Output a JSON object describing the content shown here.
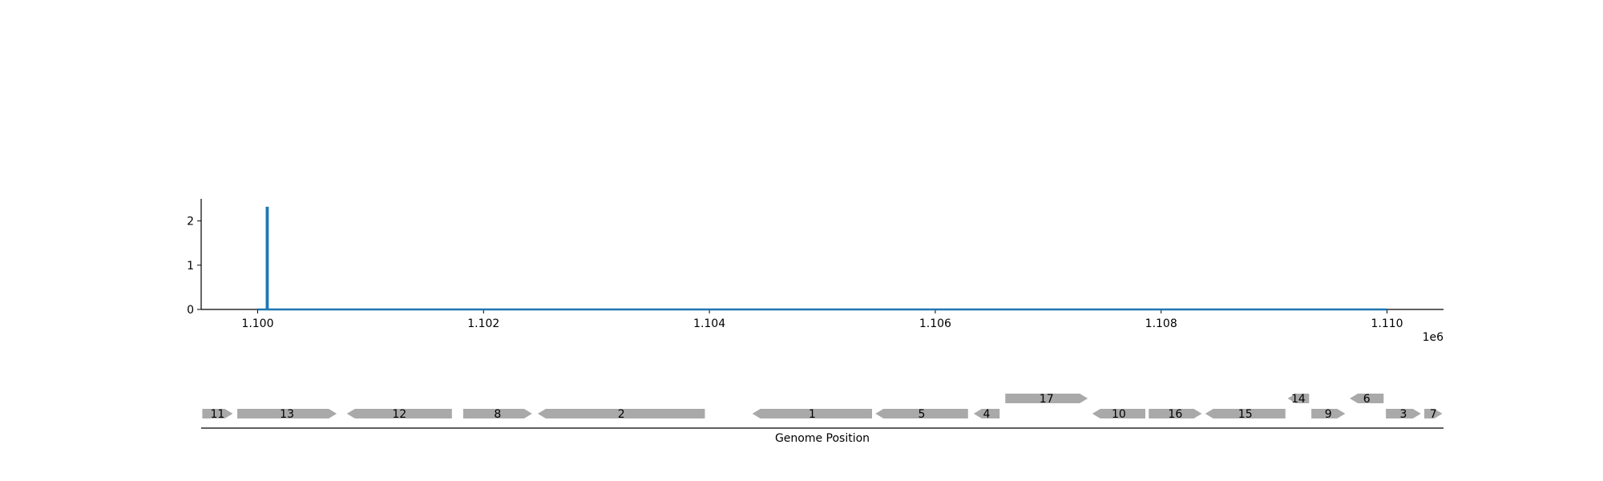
{
  "chart_data": {
    "type": "line",
    "title": "",
    "xlabel": "Genome Position",
    "ylabel": "",
    "x_multiplier_label": "1e6",
    "xlim": [
      1099500,
      1110500
    ],
    "ylim": [
      0,
      2.5
    ],
    "x_ticks": [
      1100000,
      1102000,
      1104000,
      1106000,
      1108000,
      1110000
    ],
    "x_tick_labels": [
      "1.100",
      "1.102",
      "1.104",
      "1.106",
      "1.108",
      "1.110"
    ],
    "y_ticks": [
      0,
      1,
      2
    ],
    "y_tick_labels": [
      "0",
      "1",
      "2"
    ],
    "line_color": "#1f77b4",
    "gene_color": "#a9a9a9",
    "series": [
      {
        "points": [
          [
            1100000,
            0
          ],
          [
            1100080,
            0
          ],
          [
            1100080,
            2.3
          ],
          [
            1100090,
            2.3
          ],
          [
            1100090,
            0
          ],
          [
            1110000,
            0
          ]
        ]
      }
    ],
    "genes": [
      {
        "label": "11",
        "start": 1099510,
        "end": 1099780,
        "strand": "+",
        "row": 0
      },
      {
        "label": "13",
        "start": 1099820,
        "end": 1100700,
        "strand": "+",
        "row": 0
      },
      {
        "label": "12",
        "start": 1100790,
        "end": 1101720,
        "strand": "-",
        "row": 0
      },
      {
        "label": "8",
        "start": 1101820,
        "end": 1102430,
        "strand": "+",
        "row": 0
      },
      {
        "label": "2",
        "start": 1102480,
        "end": 1103960,
        "strand": "-",
        "row": 0
      },
      {
        "label": "1",
        "start": 1104380,
        "end": 1105440,
        "strand": "-",
        "row": 0
      },
      {
        "label": "5",
        "start": 1105470,
        "end": 1106290,
        "strand": "-",
        "row": 0
      },
      {
        "label": "4",
        "start": 1106340,
        "end": 1106570,
        "strand": "-",
        "row": 0
      },
      {
        "label": "17",
        "start": 1106620,
        "end": 1107350,
        "strand": "+",
        "row": 1
      },
      {
        "label": "10",
        "start": 1107390,
        "end": 1107860,
        "strand": "-",
        "row": 0
      },
      {
        "label": "16",
        "start": 1107890,
        "end": 1108360,
        "strand": "+",
        "row": 0
      },
      {
        "label": "15",
        "start": 1108390,
        "end": 1109100,
        "strand": "-",
        "row": 0
      },
      {
        "label": "14",
        "start": 1109120,
        "end": 1109310,
        "strand": "-",
        "row": 1
      },
      {
        "label": "9",
        "start": 1109330,
        "end": 1109630,
        "strand": "+",
        "row": 0
      },
      {
        "label": "6",
        "start": 1109670,
        "end": 1109970,
        "strand": "-",
        "row": 1
      },
      {
        "label": "3",
        "start": 1109990,
        "end": 1110300,
        "strand": "+",
        "row": 0
      },
      {
        "label": "7",
        "start": 1110330,
        "end": 1110490,
        "strand": "+",
        "row": 0
      }
    ]
  }
}
